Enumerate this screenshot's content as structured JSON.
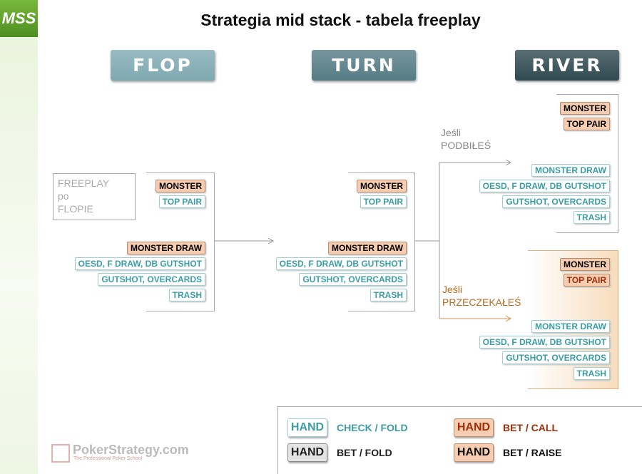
{
  "logo": "MSS",
  "title": "Strategia mid stack - tabela freeplay",
  "stages": [
    {
      "label": "FLOP",
      "fill": "#7fa9b1"
    },
    {
      "label": "TURN",
      "fill": "#557c85"
    },
    {
      "label": "RIVER",
      "fill": "#2f4a50"
    }
  ],
  "note": [
    "FREEPLAY",
    "po",
    "FLOPIE"
  ],
  "if_raised": [
    "Jeśli",
    "PODBIŁEŚ"
  ],
  "if_checked": [
    "Jeśli",
    "PRZECZEKAŁEŚ"
  ],
  "groups": [
    {
      "hands": [
        {
          "label": "MONSTER",
          "fill": "#f6cdb0",
          "text_color": "#000000",
          "border": "#b98c6e"
        },
        {
          "label": "TOP PAIR",
          "fill": "#ffffff",
          "text_color": "#3a9ea5",
          "border": "#9fcfd2"
        },
        {
          "label": "MONSTER DRAW",
          "fill": "#f6cdb0",
          "text_color": "#000000",
          "border": "#b98c6e"
        },
        {
          "label": "OESD, F DRAW, DB GUTSHOT",
          "fill": "#ffffff",
          "text_color": "#3a9ea5",
          "border": "#9fcfd2"
        },
        {
          "label": "GUTSHOT, OVERCARDS",
          "fill": "#ffffff",
          "text_color": "#3a9ea5",
          "border": "#9fcfd2"
        },
        {
          "label": "TRASH",
          "fill": "#ffffff",
          "text_color": "#3a9ea5",
          "border": "#9fcfd2"
        }
      ]
    },
    {
      "hands": [
        {
          "label": "MONSTER",
          "fill": "#f6cdb0",
          "text_color": "#000000",
          "border": "#b98c6e"
        },
        {
          "label": "TOP PAIR",
          "fill": "#ffffff",
          "text_color": "#3a9ea5",
          "border": "#9fcfd2"
        },
        {
          "label": "MONSTER DRAW",
          "fill": "#f6cdb0",
          "text_color": "#000000",
          "border": "#b98c6e"
        },
        {
          "label": "OESD, F DRAW, DB GUTSHOT",
          "fill": "#ffffff",
          "text_color": "#3a9ea5",
          "border": "#9fcfd2"
        },
        {
          "label": "GUTSHOT, OVERCARDS",
          "fill": "#ffffff",
          "text_color": "#3a9ea5",
          "border": "#9fcfd2"
        },
        {
          "label": "TRASH",
          "fill": "#ffffff",
          "text_color": "#3a9ea5",
          "border": "#9fcfd2"
        }
      ]
    },
    {
      "hands": [
        {
          "label": "MONSTER",
          "fill": "#f6cdb0",
          "text_color": "#000000",
          "border": "#b98c6e"
        },
        {
          "label": "TOP PAIR",
          "fill": "#f6cdb0",
          "text_color": "#000000",
          "border": "#b98c6e"
        },
        {
          "label": "MONSTER DRAW",
          "fill": "#ffffff",
          "text_color": "#3a9ea5",
          "border": "#9fcfd2"
        },
        {
          "label": "OESD, F DRAW, DB GUTSHOT",
          "fill": "#ffffff",
          "text_color": "#3a9ea5",
          "border": "#9fcfd2"
        },
        {
          "label": "GUTSHOT, OVERCARDS",
          "fill": "#ffffff",
          "text_color": "#3a9ea5",
          "border": "#9fcfd2"
        },
        {
          "label": "TRASH",
          "fill": "#ffffff",
          "text_color": "#3a9ea5",
          "border": "#9fcfd2"
        }
      ]
    },
    {
      "hands": [
        {
          "label": "MONSTER",
          "fill": "#f6cdb0",
          "text_color": "#000000",
          "border": "#b98c6e"
        },
        {
          "label": "TOP PAIR",
          "fill": "#f6cdb0",
          "text_color": "#a0300a",
          "border": "#b98c6e"
        },
        {
          "label": "MONSTER DRAW",
          "fill": "#ffffff",
          "text_color": "#3a9ea5",
          "border": "#9fcfd2"
        },
        {
          "label": "OESD, F DRAW, DB GUTSHOT",
          "fill": "#ffffff",
          "text_color": "#3a9ea5",
          "border": "#9fcfd2"
        },
        {
          "label": "GUTSHOT, OVERCARDS",
          "fill": "#ffffff",
          "text_color": "#3a9ea5",
          "border": "#9fcfd2"
        },
        {
          "label": "TRASH",
          "fill": "#ffffff",
          "text_color": "#3a9ea5",
          "border": "#9fcfd2"
        }
      ]
    }
  ],
  "legend": [
    {
      "hand": "HAND",
      "action": "CHECK / FOLD",
      "fill": "#ffffff",
      "text_color": "#3a9ea5",
      "border": "#9fcfd2"
    },
    {
      "hand": "HAND",
      "action": "BET / FOLD",
      "fill": "#e4e4e4",
      "text_color": "#222222",
      "border": "#8a8a8a"
    },
    {
      "hand": "HAND",
      "action": "BET / CALL",
      "fill": "#f6cdb0",
      "text_color": "#a0300a",
      "border": "#b98c6e"
    },
    {
      "hand": "HAND",
      "action": "BET / RAISE",
      "fill": "#f6cdb0",
      "text_color": "#111111",
      "border": "#b98c6e"
    }
  ],
  "watermark": {
    "name": "PokerStrategy.com",
    "tagline": "The Professional Poker School"
  }
}
